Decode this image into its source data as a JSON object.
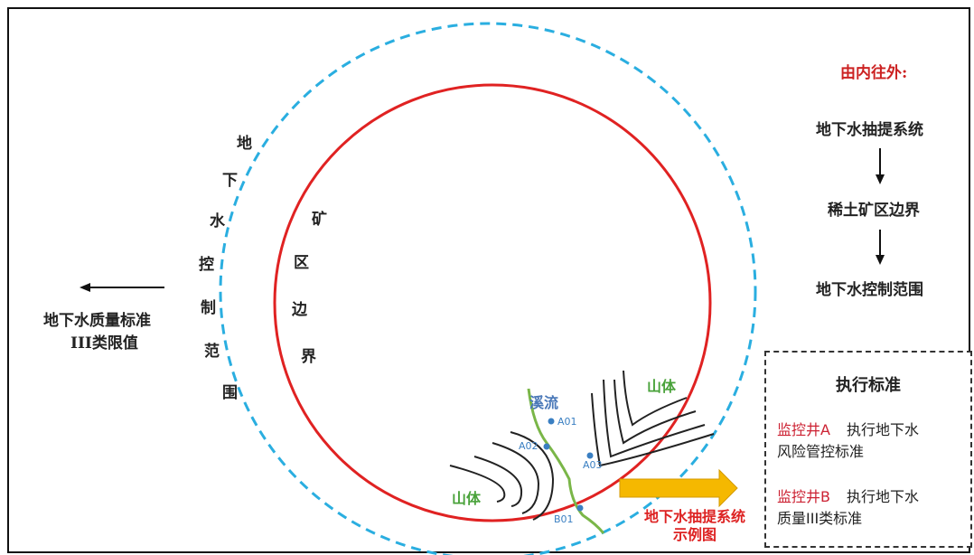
{
  "left_legend": {
    "lines": [
      "地下水质量标准",
      "III类限值"
    ]
  },
  "groundwater_control_chars": [
    "地",
    "下",
    "水",
    "控",
    "制",
    "范",
    "围"
  ],
  "mine_boundary_chars": [
    "矿",
    "区",
    "边",
    "界"
  ],
  "flow": {
    "title": "由内往外:",
    "steps": [
      "地下水抽提系统",
      "稀土矿区边界",
      "地下水控制范围"
    ]
  },
  "standards_box": {
    "title": "执行标准",
    "well_a": {
      "name": "监控井A",
      "text_line1": "执行地下水",
      "text_line2": "风险管控标准"
    },
    "well_b": {
      "name": "监控井B",
      "text_line1": "执行地下水",
      "text_line2": "质量III类标准"
    }
  },
  "example": {
    "stream_label": "溪流",
    "mountain_label_1": "山体",
    "mountain_label_2": "山体",
    "stations": [
      "A01",
      "A02",
      "A03",
      "B01"
    ],
    "caption_lines": [
      "地下水抽提系统",
      "示例图"
    ]
  },
  "colors": {
    "dashed_circle": "#2aaee0",
    "mine_circle": "#e02222",
    "stream": "#7ab648",
    "arrow_fill": "#f5b800",
    "station_dot": "#3a7fc2"
  }
}
